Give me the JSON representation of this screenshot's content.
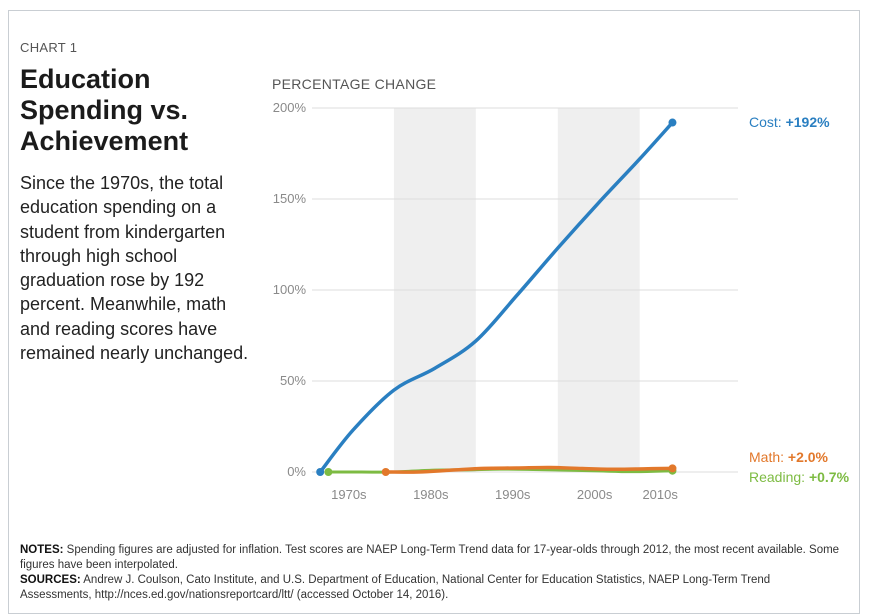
{
  "header": {
    "chart_number": "CHART 1",
    "title": "Education Spending vs. Achievement",
    "description": "Since the 1970s, the total education spending on a student from kindergarten through high school graduation rose by 192 percent. Meanwhile, math and reading scores have remained nearly unchanged."
  },
  "footer": {
    "notes_label": "NOTES:",
    "notes_text": "Spending figures are adjusted for inflation. Test scores are NAEP Long-Term Trend data for 17-year-olds through 2012, the most recent available. Some figures have been interpolated.",
    "sources_label": "SOURCES:",
    "sources_text": "Andrew J. Coulson, Cato Institute, and U.S. Department of Education, National Center for Education Statistics, NAEP Long-Term Trend Assessments, http://nces.ed.gov/nationsreportcard/ltt/ (accessed October 14, 2016)."
  },
  "colors": {
    "cost": "#2a7fc1",
    "math": "#e2782b",
    "reading": "#7dbb42",
    "band": "#efefef",
    "grid": "#dddddd"
  },
  "chart_data": {
    "type": "line",
    "ylabel": "PERCENTAGE CHANGE",
    "xlabel": "",
    "ylim": [
      0,
      200
    ],
    "xlim": [
      1965,
      2017
    ],
    "yticks": [
      0,
      50,
      100,
      150,
      200
    ],
    "ytick_labels": [
      "0%",
      "50%",
      "100%",
      "150%",
      "200%"
    ],
    "xtick_labels": [
      {
        "label": "1970s",
        "x": 1969.5
      },
      {
        "label": "1980s",
        "x": 1979.5
      },
      {
        "label": "1990s",
        "x": 1989.5
      },
      {
        "label": "2000s",
        "x": 1999.5
      },
      {
        "label": "2010s",
        "x": 2007.5
      }
    ],
    "shaded_decades": [
      [
        1975,
        1985
      ],
      [
        1995,
        2005
      ]
    ],
    "grid": true,
    "series": [
      {
        "name": "Cost",
        "end_label": "+192%",
        "points": [
          [
            1966,
            0
          ],
          [
            1970,
            23
          ],
          [
            1975,
            45
          ],
          [
            1980,
            57
          ],
          [
            1985,
            72
          ],
          [
            1990,
            97
          ],
          [
            1995,
            123
          ],
          [
            2000,
            148
          ],
          [
            2005,
            172
          ],
          [
            2009,
            192
          ]
        ]
      },
      {
        "name": "Math",
        "end_label": "+2.0%",
        "points": [
          [
            1974,
            0
          ],
          [
            1978,
            0
          ],
          [
            1982,
            1
          ],
          [
            1986,
            2
          ],
          [
            1990,
            2.2
          ],
          [
            1994,
            2.5
          ],
          [
            1998,
            1.9
          ],
          [
            2002,
            1.5
          ],
          [
            2006,
            1.8
          ],
          [
            2009,
            2.0
          ]
        ]
      },
      {
        "name": "Reading",
        "end_label": "+0.7%",
        "points": [
          [
            1967,
            0
          ],
          [
            1971,
            0
          ],
          [
            1975,
            0
          ],
          [
            1980,
            1
          ],
          [
            1984,
            1.2
          ],
          [
            1988,
            1.6
          ],
          [
            1992,
            1.4
          ],
          [
            1996,
            1.0
          ],
          [
            2000,
            0.6
          ],
          [
            2004,
            0.2
          ],
          [
            2009,
            0.7
          ]
        ]
      }
    ]
  }
}
